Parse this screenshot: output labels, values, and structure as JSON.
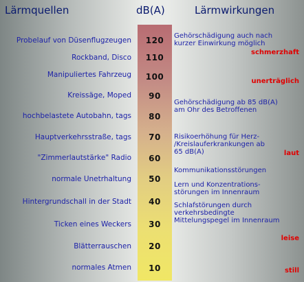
{
  "headers": {
    "sources": "Lärmquellen",
    "unit": "dB(A)",
    "effects": "Lärmwirkungen"
  },
  "colors": {
    "header_text": "#0a1a6e",
    "item_text": "#1d22a8",
    "severity_text": "#e00000",
    "scale_top": "#b86c72",
    "scale_bottom": "#f0e765"
  },
  "levels": [
    {
      "db": "120",
      "source": "Probelauf von Düsenflugzeugen"
    },
    {
      "db": "110",
      "source": "Rockband, Disco"
    },
    {
      "db": "100",
      "source": "Manipuliertes Fahrzeug"
    },
    {
      "db": "90",
      "source": "Kreissäge, Moped"
    },
    {
      "db": "80",
      "source": "hochbelastete Autobahn, tags"
    },
    {
      "db": "70",
      "source": "Hauptverkehrsstraße, tags"
    },
    {
      "db": "60",
      "source": "\"Zimmerlautstärke\" Radio"
    },
    {
      "db": "50",
      "source": "normale Unetrhaltung"
    },
    {
      "db": "40",
      "source": "Hintergrundschall in der Stadt"
    },
    {
      "db": "30",
      "source": "Ticken eines Weckers"
    },
    {
      "db": "20",
      "source": "Blätterrauschen"
    },
    {
      "db": "10",
      "source": "normales Atmen"
    }
  ],
  "effects": [
    {
      "lines": [
        "Gehörschädigung auch nach",
        "kurzer Einwirkung möglich"
      ]
    },
    {
      "lines": [
        "Gehörschädigung ab 85 dB(A)",
        "am Ohr des Betroffenen"
      ]
    },
    {
      "lines": [
        "Risikoerhöhung für Herz-",
        "/Kreislauferkrankungen ab",
        "65 dB(A)"
      ]
    },
    {
      "lines": [
        "Kommunikationsstörungen"
      ]
    },
    {
      "lines": [
        "Lern und Konzentrations-",
        "störungen im Innenraum"
      ]
    },
    {
      "lines": [
        "Schlafstörungen durch",
        "verkehrsbedingte",
        "Mittelungspegel im Innenraum"
      ]
    }
  ],
  "severity": [
    "schmerzhaft",
    "unerträglich",
    "laut",
    "leise",
    "still"
  ]
}
